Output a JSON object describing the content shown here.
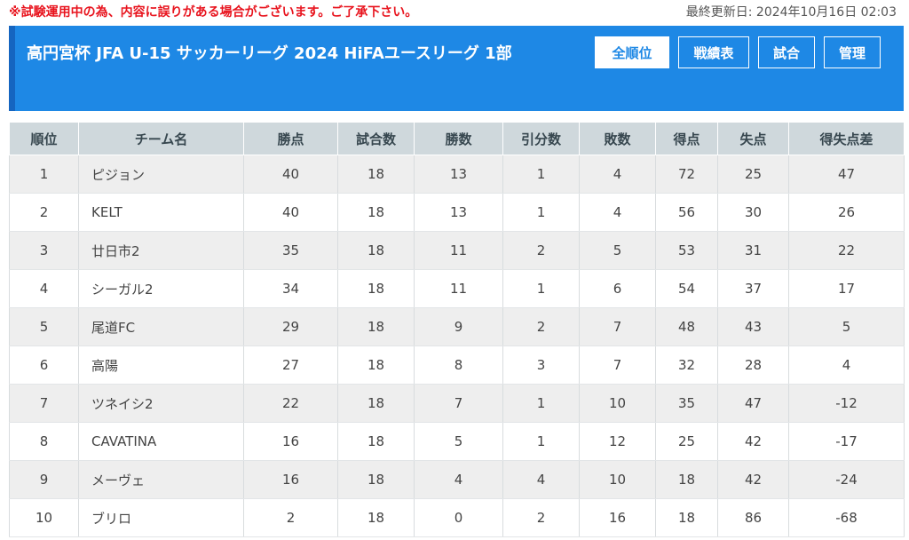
{
  "notice": "※試験運用中の為、内容に誤りがある場合がございます。ご了承下さい。",
  "last_updated": "最終更新日: 2024年10月16日 02:03",
  "header": {
    "title": "高円宮杯 JFA U-15 サッカーリーグ 2024 HiFAユースリーグ 1部",
    "nav": [
      {
        "label": "全順位",
        "active": true
      },
      {
        "label": "戦績表",
        "active": false
      },
      {
        "label": "試合",
        "active": false
      },
      {
        "label": "管理",
        "active": false
      }
    ]
  },
  "colors": {
    "header_bg": "#1e88e5",
    "header_stripe": "#1565c0",
    "notice_text": "#e8141e",
    "table_header_bg": "#cfd8dc",
    "row_alt_bg": "#eeeeee"
  },
  "table": {
    "columns": [
      "順位",
      "チーム名",
      "勝点",
      "試合数",
      "勝数",
      "引分数",
      "敗数",
      "得点",
      "失点",
      "得失点差"
    ],
    "rows": [
      [
        "1",
        "ピジョン",
        "40",
        "18",
        "13",
        "1",
        "4",
        "72",
        "25",
        "47"
      ],
      [
        "2",
        "KELT",
        "40",
        "18",
        "13",
        "1",
        "4",
        "56",
        "30",
        "26"
      ],
      [
        "3",
        "廿日市2",
        "35",
        "18",
        "11",
        "2",
        "5",
        "53",
        "31",
        "22"
      ],
      [
        "4",
        "シーガル2",
        "34",
        "18",
        "11",
        "1",
        "6",
        "54",
        "37",
        "17"
      ],
      [
        "5",
        "尾道FC",
        "29",
        "18",
        "9",
        "2",
        "7",
        "48",
        "43",
        "5"
      ],
      [
        "6",
        "高陽",
        "27",
        "18",
        "8",
        "3",
        "7",
        "32",
        "28",
        "4"
      ],
      [
        "7",
        "ツネイシ2",
        "22",
        "18",
        "7",
        "1",
        "10",
        "35",
        "47",
        "-12"
      ],
      [
        "8",
        "CAVATINA",
        "16",
        "18",
        "5",
        "1",
        "12",
        "25",
        "42",
        "-17"
      ],
      [
        "9",
        "メーヴェ",
        "16",
        "18",
        "4",
        "4",
        "10",
        "18",
        "42",
        "-24"
      ],
      [
        "10",
        "ブリロ",
        "2",
        "18",
        "0",
        "2",
        "16",
        "18",
        "86",
        "-68"
      ]
    ]
  }
}
